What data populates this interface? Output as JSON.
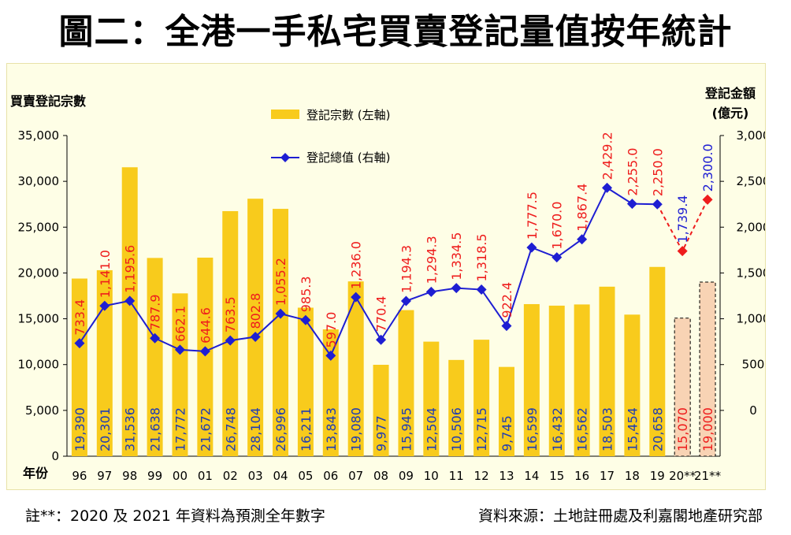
{
  "title": "圖二：全港一手私宅買賣登記量值按年統計",
  "footer": {
    "note": "註**：2020 及 2021 年資料為預測全年數字",
    "source": "資料來源：土地註冊處及利嘉閣地產研究部"
  },
  "chart_data": {
    "type": "bar+line",
    "title": "圖二：全港一手私宅買賣登記量值按年統計",
    "xlabel": "年份",
    "ylabel_left": "買賣登記宗數",
    "ylabel_right": "登記金額 (億元)",
    "ylabel_right_line1": "登記金額",
    "ylabel_right_line2": "(億元)",
    "ylim_left": [
      0,
      35000
    ],
    "ylim_right": [
      -500,
      3000
    ],
    "left_ticks": [
      "0",
      "5,000",
      "10,000",
      "15,000",
      "20,000",
      "25,000",
      "30,000",
      "35,000"
    ],
    "right_ticks": [
      "0",
      "500",
      "1,000",
      "1,500",
      "2,000",
      "2,500",
      "3,000"
    ],
    "categories": [
      "96",
      "97",
      "98",
      "99",
      "00",
      "01",
      "02",
      "03",
      "04",
      "05",
      "06",
      "07",
      "08",
      "09",
      "10",
      "11",
      "12",
      "13",
      "14",
      "15",
      "16",
      "17",
      "18",
      "19",
      "20**",
      "21**"
    ],
    "series": [
      {
        "name": "登記宗數 (左軸)",
        "axis": "left",
        "type": "bar",
        "values": [
          19390,
          20301,
          31536,
          21638,
          17772,
          21672,
          26748,
          28104,
          26996,
          16211,
          13843,
          19080,
          9977,
          15945,
          12504,
          10506,
          12715,
          9745,
          16599,
          16432,
          16562,
          18503,
          15454,
          20658,
          15070,
          19000
        ],
        "labels": [
          "19,390",
          "20,301",
          "31,536",
          "21,638",
          "17,772",
          "21,672",
          "26,748",
          "28,104",
          "26,996",
          "16,211",
          "13,843",
          "19,080",
          "9,977",
          "15,945",
          "12,504",
          "10,506",
          "12,715",
          "9,745",
          "16,599",
          "16,432",
          "16,562",
          "18,503",
          "15,454",
          "20,658",
          "15,070",
          "19,000"
        ],
        "forecast_from_index": 24
      },
      {
        "name": "登記總值 (右軸)",
        "axis": "right",
        "type": "line",
        "values": [
          733.4,
          1141.0,
          1195.6,
          787.9,
          662.1,
          644.6,
          763.5,
          802.8,
          1055.2,
          985.3,
          597.0,
          1236.0,
          770.4,
          1194.3,
          1294.3,
          1334.5,
          1318.5,
          922.4,
          1777.5,
          1670.0,
          1867.4,
          2429.2,
          2255.0,
          2250.0,
          1739.4,
          2300.0
        ],
        "labels": [
          "733.4",
          "1,141.0",
          "1,195.6",
          "787.9",
          "662.1",
          "644.6",
          "763.5",
          "802.8",
          "1,055.2",
          "985.3",
          "597.0",
          "1,236.0",
          "770.4",
          "1,194.3",
          "1,294.3",
          "1,334.5",
          "1,318.5",
          "922.4",
          "1,777.5",
          "1,670.0",
          "1,867.4",
          "2,429.2",
          "2,255.0",
          "2,250.0",
          "1,739.4",
          "2,300.0"
        ],
        "forecast_from_index": 24
      }
    ],
    "colors": {
      "bar": "#f8cb1c",
      "bar_forecast": "#f8d3b4",
      "line": "#1e1ed2",
      "line_forecast": "#ee1c1c",
      "bar_label": "#1e3cb4",
      "line_label": "#ee1c1c",
      "panel_bg": "#fefee6"
    },
    "legend_position": "top-center",
    "grid": false
  }
}
